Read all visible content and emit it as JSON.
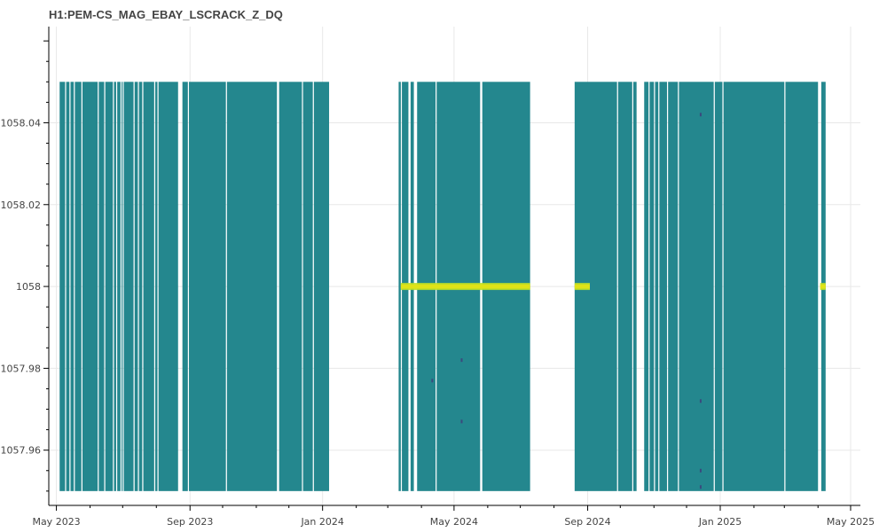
{
  "chart_data": {
    "type": "heatmap",
    "title": "H1:PEM-CS_MAG_EBAY_LSCRACK_Z_DQ",
    "xlabel": "",
    "ylabel": "",
    "x_ticks": [
      "May 2023",
      "Sep 2023",
      "Jan 2024",
      "May 2024",
      "Sep 2024",
      "Jan 2025",
      "May 2025"
    ],
    "x_tick_dates": [
      "2023-05-01",
      "2023-09-01",
      "2024-01-01",
      "2024-05-01",
      "2024-09-01",
      "2025-01-01",
      "2025-05-01"
    ],
    "xlim": [
      "2023-04-24",
      "2025-05-10"
    ],
    "y_ticks": [
      "1057.96",
      "1057.98",
      "1058",
      "1058.02",
      "1058.04"
    ],
    "y_tick_values": [
      1057.96,
      1057.98,
      1058.0,
      1058.02,
      1058.04
    ],
    "ylim": [
      1057.9465,
      1058.0635
    ],
    "y_range": [
      1057.95,
      1058.05
    ],
    "grid": true,
    "colors": {
      "base": "#24878e",
      "gap": "#ffffff",
      "peak": "#dfe318",
      "peak_edge": "#bddf26",
      "dark_spot": "#3a4a7e"
    },
    "data_segments": [
      [
        "2023-05-04",
        "2023-05-09"
      ],
      [
        "2023-05-10",
        "2023-05-13"
      ],
      [
        "2023-05-14",
        "2023-05-17"
      ],
      [
        "2023-05-18",
        "2023-05-24"
      ],
      [
        "2023-05-25",
        "2023-06-08"
      ],
      [
        "2023-06-09",
        "2023-06-14"
      ],
      [
        "2023-06-15",
        "2023-06-22"
      ],
      [
        "2023-06-23",
        "2023-06-25"
      ],
      [
        "2023-06-26",
        "2023-06-29"
      ],
      [
        "2023-06-30",
        "2023-07-01"
      ],
      [
        "2023-07-02",
        "2023-07-11"
      ],
      [
        "2023-07-12",
        "2023-07-15"
      ],
      [
        "2023-07-16",
        "2023-07-19"
      ],
      [
        "2023-07-20",
        "2023-07-30"
      ],
      [
        "2023-07-31",
        "2023-08-02"
      ],
      [
        "2023-08-03",
        "2023-08-21"
      ],
      [
        "2023-08-25",
        "2023-08-30"
      ],
      [
        "2023-08-31",
        "2023-10-04"
      ],
      [
        "2023-10-05",
        "2023-11-20"
      ],
      [
        "2023-11-22",
        "2023-12-13"
      ],
      [
        "2023-12-14",
        "2023-12-23"
      ],
      [
        "2023-12-24",
        "2024-01-07"
      ],
      [
        "2024-03-11",
        "2024-03-13"
      ],
      [
        "2024-03-14",
        "2024-03-20"
      ],
      [
        "2024-03-22",
        "2024-03-25"
      ],
      [
        "2024-03-28",
        "2024-04-14"
      ],
      [
        "2024-04-15",
        "2024-05-25"
      ],
      [
        "2024-05-27",
        "2024-07-10"
      ],
      [
        "2024-08-20",
        "2024-09-28"
      ],
      [
        "2024-09-29",
        "2024-10-12"
      ],
      [
        "2024-10-13",
        "2024-10-16"
      ],
      [
        "2024-10-23",
        "2024-10-27"
      ],
      [
        "2024-10-28",
        "2024-11-01"
      ],
      [
        "2024-11-02",
        "2024-11-05"
      ],
      [
        "2024-11-06",
        "2024-11-13"
      ],
      [
        "2024-11-14",
        "2024-11-23"
      ],
      [
        "2024-11-24",
        "2024-12-26"
      ],
      [
        "2024-12-27",
        "2025-01-03"
      ],
      [
        "2025-01-04",
        "2025-03-01"
      ],
      [
        "2025-03-02",
        "2025-04-01"
      ],
      [
        "2025-04-04",
        "2025-04-08"
      ]
    ],
    "peak_value": 1058.0,
    "peak_segments": [
      [
        "2024-03-13",
        "2024-07-10"
      ],
      [
        "2024-08-20",
        "2024-09-03"
      ],
      [
        "2025-04-03",
        "2025-04-08"
      ]
    ],
    "dark_spots": [
      {
        "x": "2024-04-11",
        "y": 1057.977
      },
      {
        "x": "2024-05-08",
        "y": 1057.982
      },
      {
        "x": "2024-05-08",
        "y": 1057.967
      },
      {
        "x": "2024-12-14",
        "y": 1058.042
      },
      {
        "x": "2024-12-14",
        "y": 1057.972
      },
      {
        "x": "2024-12-14",
        "y": 1057.955
      },
      {
        "x": "2024-12-14",
        "y": 1057.951
      }
    ]
  }
}
